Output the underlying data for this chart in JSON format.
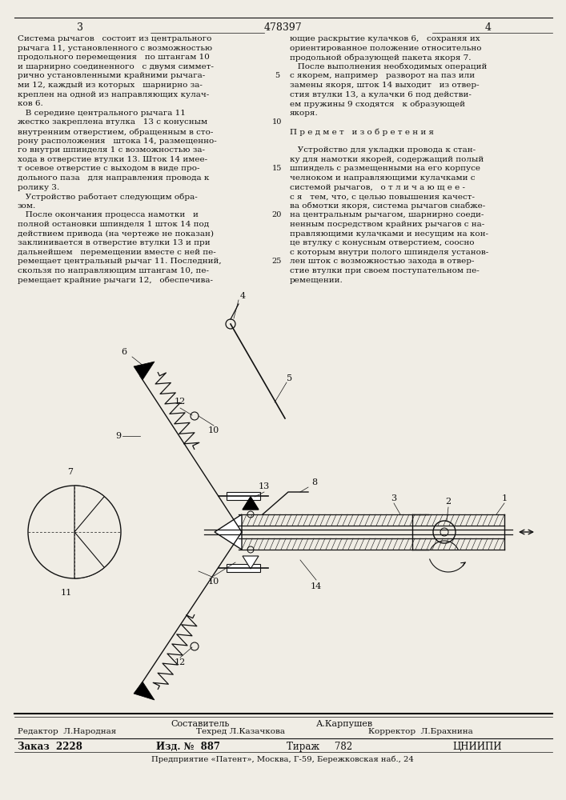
{
  "bg_color": "#f0ede5",
  "text_color": "#111111",
  "page_left": "3",
  "patent": "478397",
  "page_right": "4",
  "left_col": [
    "Система рычагов   состоит из центрального",
    "рычага 11, установленного с возможностью",
    "продольного перемещения   по штангам 10",
    "и шарнирно соединенного   с двумя симмет-",
    "рично установленными крайними рычага-",
    "ми 12, каждый из которых   шарнирно за-",
    "креплен на одной из направляющих кулач-",
    "ков 6.",
    "   В середине центрального рычага 11",
    "жестко закреплена втулка   13 с конусным",
    "внутренним отверстием, обращенным в сто-",
    "рону расположения   штока 14, размещенно-",
    "го внутри шпинделя 1 с возможностью за-",
    "хода в отверстие втулки 13. Шток 14 имее-",
    "т осевое отверстие с выходом в виде про-",
    "дольного паза   для направления провода к",
    "ролику 3.",
    "   Устройство работает следующим обра-",
    "зом.",
    "   После окончания процесса намотки   и",
    "полной остановки шпинделя 1 шток 14 под",
    "действием привода (на чертеже не показан)",
    "заклинивается в отверстие втулки 13 и при",
    "дальнейшем   перемещении вместе с ней пе-",
    "ремещает центральный рычаг 11. Последний,",
    "скользя по направляющим штангам 10, пе-",
    "ремещает крайние рычаги 12,   обеспечива-"
  ],
  "right_col": [
    "ющие раскрытие кулачков 6,   сохраняя их",
    "ориентированное положение относительно",
    "продольной образующей пакета якоря 7.",
    "   После выполнения необходимых операций",
    "с якорем, например   разворот на паз или",
    "замены якоря, шток 14 выходит   из отвер-",
    "стия втулки 13, а кулачки 6 под действи-",
    "ем пружины 9 сходятся   к образующей",
    "якоря.",
    "",
    "П р е д м е т   и з о б р е т е н и я",
    "",
    "   Устройство для укладки провода к стан-",
    "ку для намотки якорей, содержащий полый",
    "шпиндель с размещенными на его корпусе",
    "челноком и направляющими кулачками с",
    "системой рычагов,   о т л и ч а ю щ е е -",
    "с я   тем, что, с целью повышения качест-",
    "ва обмотки якоря, система рычагов снабже-",
    "на центральным рычагом, шарнирно соеди-",
    "ненным посредством крайних рычагов с на-",
    "правляющими кулачками и несущим на кон-",
    "це втулку с конусным отверстием, соосно",
    "с которым внутри полого шпинделя установ-",
    "лен шток с возможностью захода в отвер-",
    "стие втулки при своем поступательном пе-",
    "ремещении."
  ],
  "line_nums": [
    5,
    10,
    15,
    20,
    25
  ],
  "footer": {
    "sestavitel_label": "Составитель",
    "sestavitel_name": "А.Карпушев",
    "redaktor": "Редактор  Л.Народная",
    "tehred": "Техред Л.Казачкова",
    "korrektor": "Корректор  Л.Брахнина",
    "zakaz": "Заказ  2228",
    "izd": "Изд. №  887",
    "tirazh": "Тираж     782",
    "inst": "ЦНИИПИ",
    "address": "Предприятие «Патент», Москва, Г-59, Бережковская наб., 24"
  }
}
